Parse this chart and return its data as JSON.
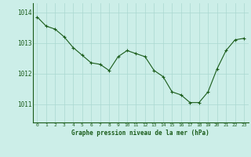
{
  "x": [
    0,
    1,
    2,
    3,
    4,
    5,
    6,
    7,
    8,
    9,
    10,
    11,
    12,
    13,
    14,
    15,
    16,
    17,
    18,
    19,
    20,
    21,
    22,
    23
  ],
  "y": [
    1013.85,
    1013.55,
    1013.45,
    1013.2,
    1012.85,
    1012.6,
    1012.35,
    1012.3,
    1012.1,
    1012.55,
    1012.75,
    1012.65,
    1012.55,
    1012.1,
    1011.9,
    1011.4,
    1011.3,
    1011.05,
    1011.05,
    1011.4,
    1012.15,
    1012.75,
    1013.1,
    1013.15
  ],
  "line_color": "#1a5c1a",
  "marker": "+",
  "markersize": 3,
  "linewidth": 0.8,
  "background_color": "#cceee8",
  "grid_color": "#aad8d0",
  "axis_label": "Graphe pression niveau de la mer (hPa)",
  "axis_label_color": "#1a5c1a",
  "tick_label_color": "#1a5c1a",
  "yticks": [
    1011,
    1012,
    1013,
    1014
  ],
  "ylim": [
    1010.4,
    1014.3
  ],
  "xlim": [
    -0.5,
    23.5
  ],
  "xticks": [
    0,
    1,
    2,
    3,
    4,
    5,
    6,
    7,
    8,
    9,
    10,
    11,
    12,
    13,
    14,
    15,
    16,
    17,
    18,
    19,
    20,
    21,
    22,
    23
  ]
}
